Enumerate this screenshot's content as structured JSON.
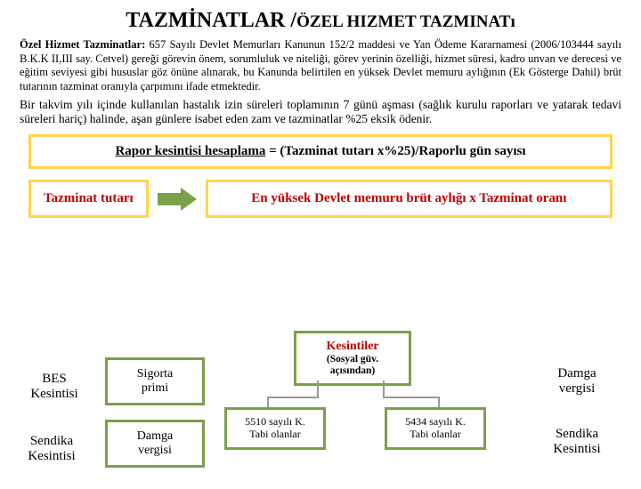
{
  "title_main": "TAZMİNATLAR /",
  "title_small": "ÖZEL HIZMET TAZMINATı",
  "para1_lead": "Özel Hizmet Tazminatlar:",
  "para1_body": " 657 Sayılı Devlet Memurları Kanunun 152/2 maddesi ve Yan Ödeme Kararnamesi (2006/103444 sayılı B.K.K II,III say. Cetvel) gereği görevin önem, sorumluluk ve niteliği, görev yerinin özelliği, hizmet süresi, kadro unvan ve derecesi ve eğitim seviyesi gibi hususlar göz önüne alınarak, bu Kanunda belirtilen en yüksek Devlet memuru aylığının (Ek Gösterge Dahil) brüt tutarının tazminat oranıyla çarpımını ifade etmektedir.",
  "para2": "Bir takvim yılı içinde kullanılan hastalık izin süreleri toplamının 7 günü aşması (sağlık kurulu raporları ve yatarak tedavi süreleri hariç) halinde, aşan günlere isabet eden zam ve tazminatlar %25 eksik ödenir.",
  "formula_label": "Rapor kesintisi hesaplama",
  "formula_rhs": " = (Tazminat tutarı x%25)/Raporlu gün sayısı",
  "left_red": "Tazminat tutarı",
  "right_red": "En yüksek Devlet memuru brüt aylığı x Tazminat oranı",
  "bottom": {
    "bes": "BES\nKesintisi",
    "sendika": "Sendika\nKesintisi",
    "sigorta": "Sigorta\nprimi",
    "damga_left": "Damga\nvergisi",
    "kesintiler_title": "Kesintiler",
    "kesintiler_sub": "(Sosyal güv.\naçısından)",
    "box5510": "5510 sayılı K.\nTabi olanlar",
    "box5434": "5434 sayılı K.\nTabi olanlar",
    "damga_right": "Damga\nvergisi",
    "sendika_right": "Sendika\nKesintisi"
  },
  "colors": {
    "accent_yellow": "#ffd54a",
    "accent_green": "#7aa04a",
    "red_text": "#bb0000"
  }
}
